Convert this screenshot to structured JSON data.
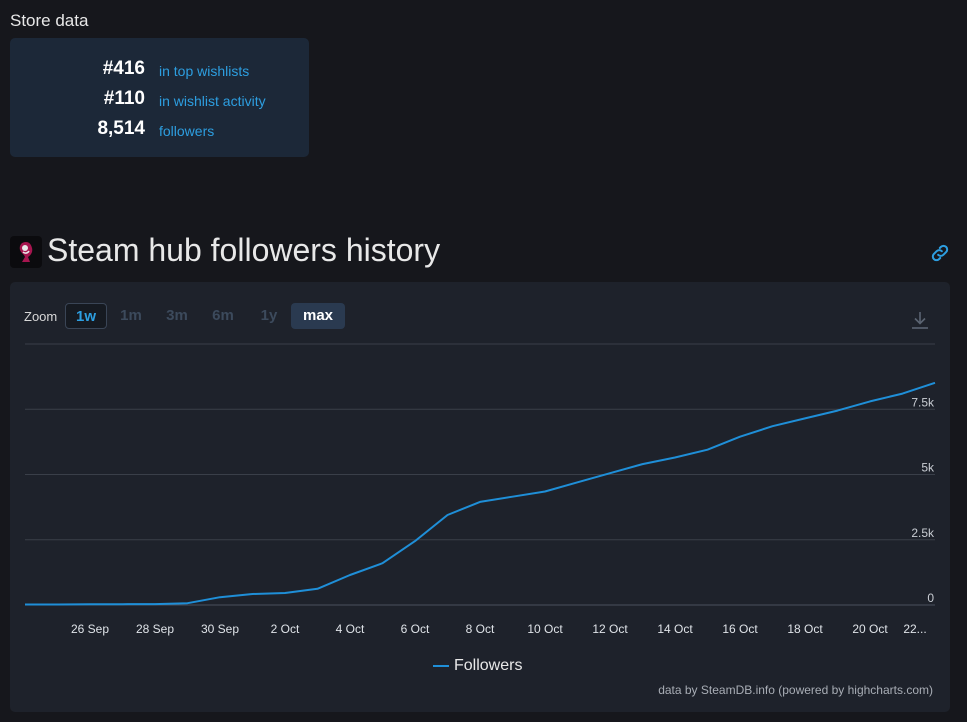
{
  "store_data": {
    "title": "Store data",
    "stats": [
      {
        "value": "#416",
        "label": "in top wishlists"
      },
      {
        "value": "#110",
        "label": "in wishlist activity"
      },
      {
        "value": "8,514",
        "label": "followers"
      }
    ]
  },
  "hub": {
    "title": "Steam hub followers history"
  },
  "zoom": {
    "label": "Zoom",
    "buttons": [
      "1w",
      "1m",
      "3m",
      "6m",
      "1y",
      "max"
    ],
    "active": "max"
  },
  "colors": {
    "series": "#1f8fd8",
    "link": "#2d9ee0",
    "grid": "#3a3f49",
    "accent_button": "#2a3a50"
  },
  "chart_data": {
    "type": "line",
    "title": "",
    "xlabel": "",
    "ylabel": "",
    "x_tick_labels": [
      "26 Sep",
      "28 Sep",
      "30 Sep",
      "2 Oct",
      "4 Oct",
      "6 Oct",
      "8 Oct",
      "10 Oct",
      "12 Oct",
      "14 Oct",
      "16 Oct",
      "18 Oct",
      "20 Oct",
      "22..."
    ],
    "y_tick_labels": [
      "0",
      "2.5k",
      "5k",
      "7.5k"
    ],
    "y_ticks": [
      0,
      2500,
      5000,
      7500,
      10000
    ],
    "ylim": [
      0,
      10000
    ],
    "grid": true,
    "legend_position": "bottom-center",
    "series": [
      {
        "name": "Followers",
        "x": [
          "24 Sep",
          "25 Sep",
          "26 Sep",
          "27 Sep",
          "28 Sep",
          "29 Sep",
          "30 Sep",
          "1 Oct",
          "2 Oct",
          "3 Oct",
          "4 Oct",
          "5 Oct",
          "6 Oct",
          "7 Oct",
          "8 Oct",
          "9 Oct",
          "10 Oct",
          "11 Oct",
          "12 Oct",
          "13 Oct",
          "14 Oct",
          "15 Oct",
          "16 Oct",
          "17 Oct",
          "18 Oct",
          "19 Oct",
          "20 Oct",
          "21 Oct",
          "22 Oct"
        ],
        "y": [
          20,
          20,
          25,
          30,
          35,
          70,
          300,
          420,
          460,
          620,
          1150,
          1600,
          2450,
          3450,
          3950,
          4150,
          4350,
          4700,
          5050,
          5400,
          5650,
          5950,
          6450,
          6850,
          7150,
          7450,
          7800,
          8100,
          8514
        ]
      }
    ]
  },
  "legend": {
    "label": "Followers"
  },
  "credits": "data by SteamDB.info (powered by highcharts.com)"
}
